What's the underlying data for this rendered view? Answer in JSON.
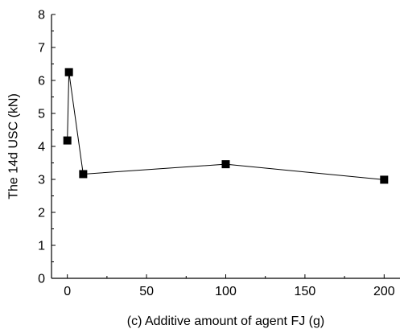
{
  "chart_data": {
    "type": "line",
    "title": "",
    "xlabel": "(c) Additive amount of agent FJ (g)",
    "ylabel": "The 14d USC (kN)",
    "xlim": [
      -10,
      210
    ],
    "ylim": [
      0,
      8
    ],
    "xticks": [
      0,
      50,
      100,
      150,
      200
    ],
    "yticks": [
      0,
      1,
      2,
      3,
      4,
      5,
      6,
      7,
      8
    ],
    "grid": false,
    "legend": "none",
    "marker": "square",
    "color": "#000000",
    "series": [
      {
        "x": [
          0,
          1,
          10,
          100,
          200
        ],
        "y": [
          4.18,
          6.25,
          3.16,
          3.46,
          2.99
        ]
      }
    ]
  }
}
